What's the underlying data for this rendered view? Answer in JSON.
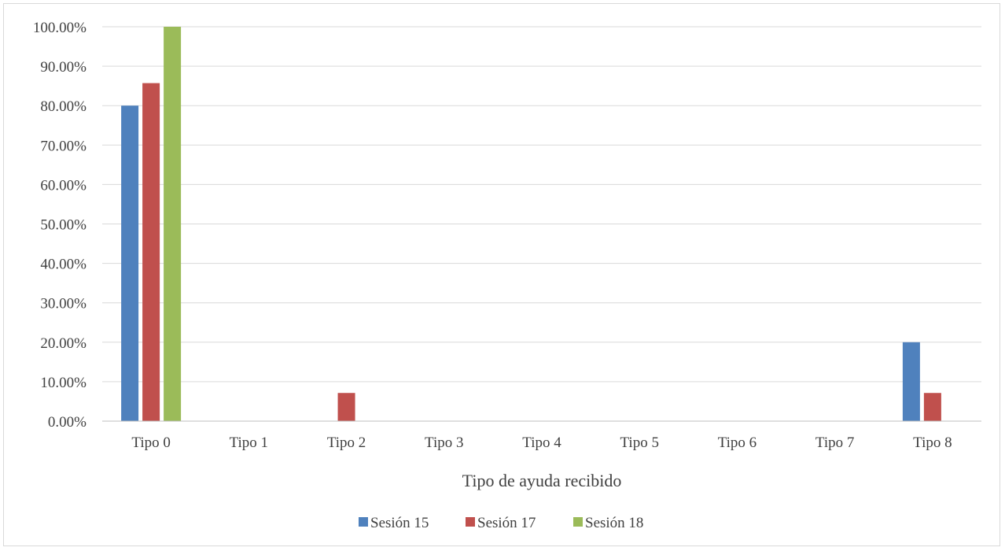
{
  "chart_data": {
    "type": "bar",
    "title": "",
    "xlabel": "Tipo de ayuda recibido",
    "ylabel": "",
    "categories": [
      "Tipo 0",
      "Tipo 1",
      "Tipo 2",
      "Tipo 3",
      "Tipo 4",
      "Tipo 5",
      "Tipo 6",
      "Tipo 7",
      "Tipo 8"
    ],
    "series": [
      {
        "name": "Sesión 15",
        "color": "#4f81bd",
        "values": [
          80.0,
          0,
          0,
          0,
          0,
          0,
          0,
          0,
          20.0
        ]
      },
      {
        "name": "Sesión 17",
        "color": "#c0504d",
        "values": [
          85.71,
          0,
          7.14,
          0,
          0,
          0,
          0,
          0,
          7.14
        ]
      },
      {
        "name": "Sesión 18",
        "color": "#9bbb59",
        "values": [
          100.0,
          0,
          0,
          0,
          0,
          0,
          0,
          0,
          0
        ]
      }
    ],
    "ylim": [
      0,
      100
    ],
    "y_ticks": [
      "0.00%",
      "10.00%",
      "20.00%",
      "30.00%",
      "40.00%",
      "50.00%",
      "60.00%",
      "70.00%",
      "80.00%",
      "90.00%",
      "100.00%"
    ],
    "grid": true,
    "legend_position": "bottom"
  }
}
